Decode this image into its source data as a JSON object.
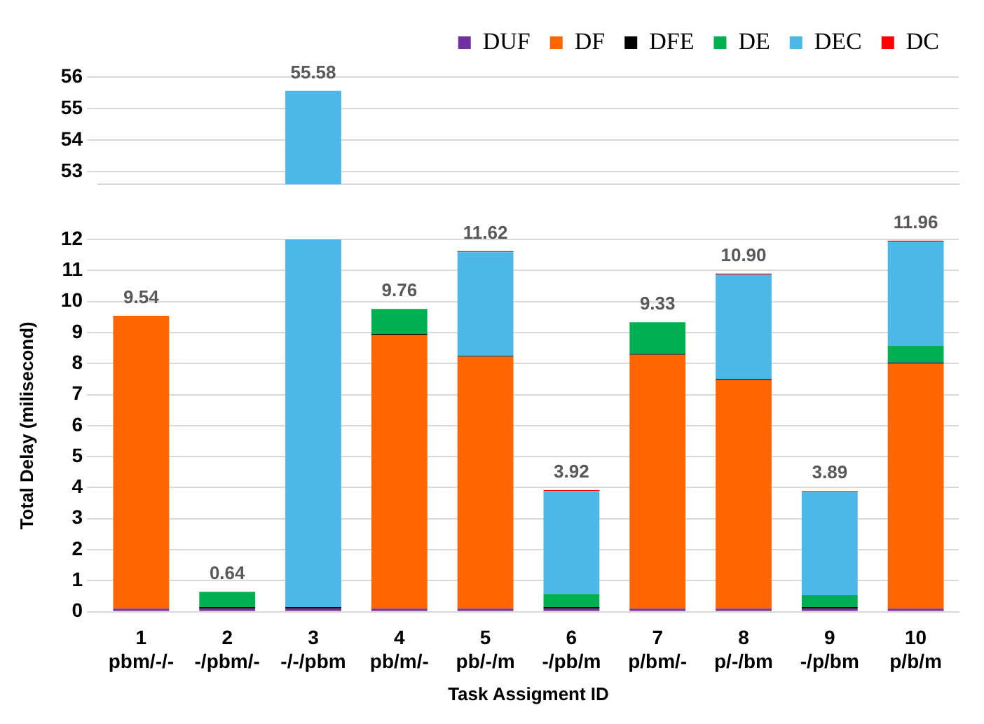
{
  "chart_data": [
    {
      "type": "bar",
      "stacked": true,
      "tick_labels": "y",
      "categories": [
        null,
        null,
        null,
        null,
        null,
        null,
        null,
        null,
        null,
        null
      ],
      "series": [
        {
          "name": "DUF",
          "color": "#7030a0",
          "values": [
            null,
            null,
            null,
            null,
            null,
            null,
            null,
            null,
            null,
            null
          ]
        },
        {
          "name": "DF",
          "color": "#ff6600",
          "values": [
            null,
            null,
            null,
            null,
            null,
            null,
            null,
            null,
            null,
            null
          ]
        },
        {
          "name": "DFE",
          "color": "#000000",
          "values": [
            null,
            null,
            null,
            null,
            null,
            null,
            null,
            null,
            null,
            null
          ]
        },
        {
          "name": "DE",
          "color": "#00b050",
          "values": [
            null,
            null,
            null,
            null,
            null,
            null,
            null,
            null,
            null,
            null
          ]
        },
        {
          "name": "DEC",
          "color": "#4db8e8",
          "values": [
            null,
            null,
            55.56,
            null,
            null,
            null,
            null,
            null,
            null,
            null
          ]
        },
        {
          "name": "DC",
          "color": "#ff0000",
          "values": [
            null,
            null,
            null,
            null,
            null,
            null,
            null,
            null,
            null,
            null
          ]
        }
      ],
      "totals": [
        null,
        null,
        "55.58",
        null,
        null,
        null,
        null,
        null,
        null,
        null
      ],
      "ylim": [
        52.6,
        56
      ],
      "yticks": [
        53,
        54,
        55,
        56
      ],
      "grid": "y",
      "legend": "top right"
    },
    {
      "type": "bar",
      "stacked": true,
      "xlabel": "Task Assigment ID",
      "ylabel": "Total Delay (milisecond)",
      "categories": [
        "1\npbm/-/-",
        "2\n-/pbm/-",
        "3\n-/-/pbm",
        "4\npb/m/-",
        "5\npb/-/m",
        "6\n-/pb/m",
        "7\np/bm/-",
        "8\np/-/bm",
        "9\n-/p/bm",
        "10\np/b/m"
      ],
      "series": [
        {
          "color": "#7030a0",
          "values": [
            0.1,
            0.1,
            0.1,
            0.1,
            0.1,
            0.1,
            0.1,
            0.1,
            0.1,
            0.1
          ]
        },
        {
          "color": "#ff6600",
          "values": [
            9.44,
            0,
            0,
            8.82,
            8.12,
            0,
            8.18,
            7.37,
            0,
            7.9
          ]
        },
        {
          "color": "#000000",
          "values": [
            0,
            0.05,
            0.05,
            0.03,
            0.03,
            0.05,
            0.03,
            0.03,
            0.05,
            0.03
          ]
        },
        {
          "color": "#00b050",
          "values": [
            0,
            0.49,
            0,
            0.81,
            0,
            0.42,
            1.02,
            0,
            0.38,
            0.55
          ]
        },
        {
          "color": "#4db8e8",
          "values": [
            0,
            0,
            11.85,
            0,
            3.34,
            3.32,
            0,
            3.37,
            3.33,
            3.35
          ]
        },
        {
          "color": "#ff0000",
          "values": [
            0,
            0,
            null,
            0,
            0.03,
            0.03,
            0,
            0.03,
            0.03,
            0.03
          ]
        }
      ],
      "totals": [
        "9.54",
        "0.64",
        null,
        "9.76",
        "11.62",
        "3.92",
        "9.33",
        "10.90",
        "3.89",
        "11.96"
      ],
      "ylim": [
        0,
        12
      ],
      "yticks": [
        0,
        1,
        2,
        3,
        4,
        5,
        6,
        7,
        8,
        9,
        10,
        11,
        12
      ],
      "grid": "y"
    }
  ]
}
